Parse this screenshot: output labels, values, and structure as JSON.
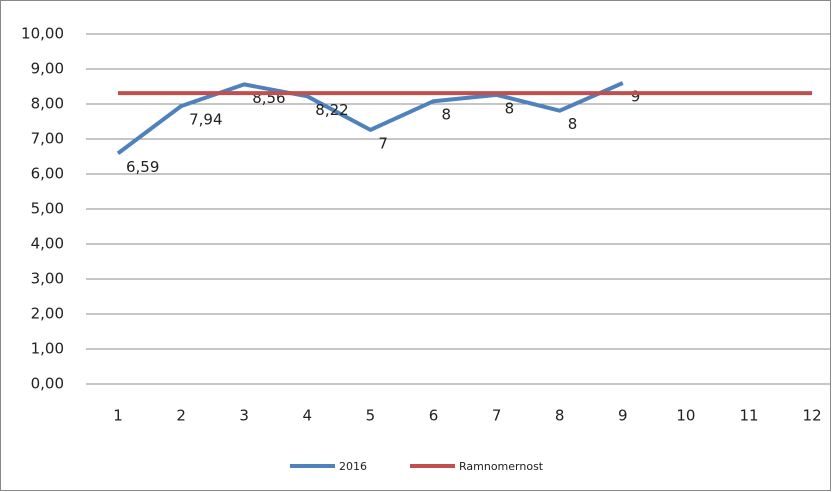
{
  "chart_data": {
    "type": "line",
    "categories": [
      "1",
      "2",
      "3",
      "4",
      "5",
      "6",
      "7",
      "8",
      "9",
      "10",
      "11",
      "12"
    ],
    "series": [
      {
        "name": "2016",
        "color": "#4f81bd",
        "values": [
          6.59,
          7.94,
          8.56,
          8.22,
          7.26,
          8.08,
          8.26,
          7.81,
          8.6,
          null,
          null,
          null
        ],
        "value_labels": [
          "6,59",
          "7,94",
          "8,56",
          "8,22",
          "7",
          "8",
          "8",
          "8",
          "9",
          null,
          null,
          null
        ]
      },
      {
        "name": "Ramnomernost",
        "color": "#c0504d",
        "values": [
          8.31,
          8.31,
          8.31,
          8.31,
          8.31,
          8.31,
          8.31,
          8.31,
          8.31,
          8.31,
          8.31,
          8.31
        ]
      }
    ],
    "ylim": [
      0,
      10
    ],
    "yticks": [
      {
        "value": 0,
        "label": "0,00"
      },
      {
        "value": 1,
        "label": "1,00"
      },
      {
        "value": 2,
        "label": "2,00"
      },
      {
        "value": 3,
        "label": "3,00"
      },
      {
        "value": 4,
        "label": "4,00"
      },
      {
        "value": 5,
        "label": "5,00"
      },
      {
        "value": 6,
        "label": "6,00"
      },
      {
        "value": 7,
        "label": "7,00"
      },
      {
        "value": 8,
        "label": "8,00"
      },
      {
        "value": 9,
        "label": "9,00"
      },
      {
        "value": 10,
        "label": "10,00"
      }
    ],
    "grid": true,
    "legend": "bottom"
  }
}
